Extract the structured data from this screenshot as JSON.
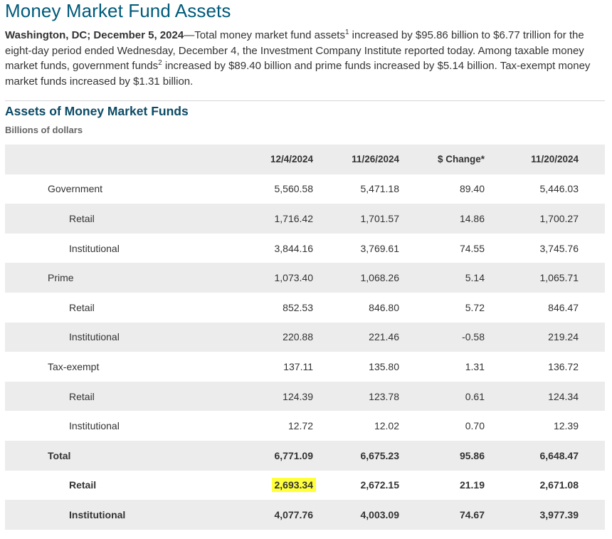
{
  "page": {
    "title": "Money Market Fund Assets"
  },
  "intro": {
    "dateline": "Washington, DC; December 5, 2024",
    "text_a": "—Total money market fund assets",
    "sup1": "1",
    "text_b": " increased by $95.86 billion to $6.77 trillion for the eight-day period ended Wednesday, December 4, the Investment Company Institute reported today. Among taxable money market funds, government funds",
    "sup2": "2",
    "text_c": " increased by $89.40 billion and prime funds increased by $5.14 billion. Tax-exempt money market funds increased by $1.31 billion."
  },
  "table": {
    "title": "Assets of Money Market Funds",
    "units": "Billions of dollars",
    "headers": [
      "",
      "12/4/2024",
      "11/26/2024",
      "$ Change*",
      "11/20/2024"
    ],
    "rows": [
      {
        "label": "Government",
        "values": [
          "5,560.58",
          "5,471.18",
          "89.40",
          "5,446.03"
        ]
      },
      {
        "label": "Retail",
        "values": [
          "1,716.42",
          "1,701.57",
          "14.86",
          "1,700.27"
        ]
      },
      {
        "label": "Institutional",
        "values": [
          "3,844.16",
          "3,769.61",
          "74.55",
          "3,745.76"
        ]
      },
      {
        "label": "Prime",
        "values": [
          "1,073.40",
          "1,068.26",
          "5.14",
          "1,065.71"
        ]
      },
      {
        "label": "Retail",
        "values": [
          "852.53",
          "846.80",
          "5.72",
          "846.47"
        ]
      },
      {
        "label": "Institutional",
        "values": [
          "220.88",
          "221.46",
          "-0.58",
          "219.24"
        ]
      },
      {
        "label": "Tax-exempt",
        "values": [
          "137.11",
          "135.80",
          "1.31",
          "136.72"
        ]
      },
      {
        "label": "Retail",
        "values": [
          "124.39",
          "123.78",
          "0.61",
          "124.34"
        ]
      },
      {
        "label": "Institutional",
        "values": [
          "12.72",
          "12.02",
          "0.70",
          "12.39"
        ]
      },
      {
        "label": "Total",
        "values": [
          "6,771.09",
          "6,675.23",
          "95.86",
          "6,648.47"
        ]
      },
      {
        "label": "Retail",
        "values": [
          "2,693.34",
          "2,672.15",
          "21.19",
          "2,671.08"
        ]
      },
      {
        "label": "Institutional",
        "values": [
          "4,077.76",
          "4,003.09",
          "74.67",
          "3,977.39"
        ]
      }
    ]
  },
  "colors": {
    "title": "#005a7a",
    "table_title": "#0b4a66",
    "row_shade": "#ececec",
    "highlight": "#ffff3b"
  }
}
